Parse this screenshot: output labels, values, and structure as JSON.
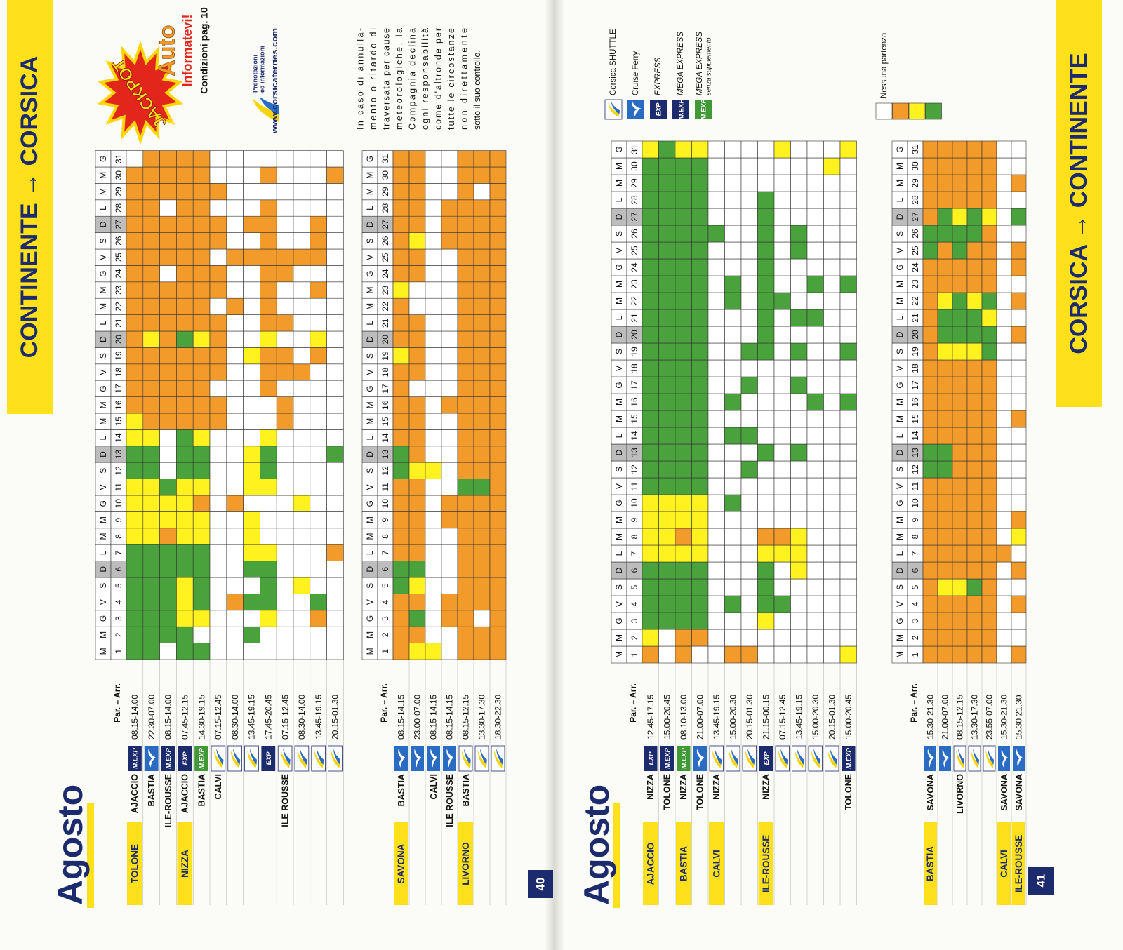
{
  "cell_colors": {
    "O": "#f39b2a",
    "Y": "#fff21f",
    "G": "#4aa23c",
    "W": "#ffffff"
  },
  "badge_colors": {
    "navy": "#1c2a6e",
    "green": "#3f9a35",
    "cruise": "#2a6cc4"
  },
  "days": [
    1,
    2,
    3,
    4,
    5,
    6,
    7,
    8,
    9,
    10,
    11,
    12,
    13,
    14,
    15,
    16,
    17,
    18,
    19,
    20,
    21,
    22,
    23,
    24,
    25,
    26,
    27,
    28,
    29,
    30,
    31
  ],
  "weekdays": [
    "M",
    "M",
    "G",
    "V",
    "S",
    {
      "label": "D",
      "shaded": true
    },
    "L",
    "M",
    "M",
    "G",
    "V",
    "S",
    {
      "label": "D",
      "shaded": true
    },
    "L",
    "M",
    "M",
    "G",
    "V",
    "S",
    {
      "label": "D",
      "shaded": true
    },
    "L",
    "M",
    "M",
    "G",
    "V",
    "S",
    {
      "label": "D",
      "shaded": true
    },
    "L",
    "M",
    "M",
    "G"
  ],
  "pages": [
    {
      "number": "40",
      "title": "Agosto",
      "banner": "CONTINENTE → CORSICA",
      "tables": [
        {
          "header": "Par. – Arr.",
          "rows": [
            {
              "group": "TOLONE",
              "destination": "AJACCIO",
              "badge": "M.EXP",
              "time": "08.15-14.00",
              "days": "GGGGGGG YYYYGGY YOOOOOO OOOOOOO OOW"
            },
            {
              "destination": "BASTIA",
              "icon": "cruise",
              "time": "22.30-07.00",
              "days": "GGGGGGG YYYYGGY OOOOOYO OOOOOOO OOO"
            },
            {
              "destination": "ILE-ROUSSE",
              "badge": "M.EXP",
              "time": "08.15-14.00",
              "days": "WGGGGGG OYYGWWW OOOOOOO OOWOOOW OOO"
            },
            {
              "group": "NIZZA",
              "destination": "AJACCIO",
              "badge": "EXP",
              "time": "07.45-12.15",
              "days": "GGYYYGG YYYYGGG OOOOOGO OOOOOOO OOO"
            },
            {
              "destination": "BASTIA",
              "badge": "M.EXP",
              "badge_color": "green",
              "time": "14.30-19.15",
              "days": "GWYGGGG YYOYGGY OOOOOYO OOOOOOO OOO"
            },
            {
              "destination": "CALVI",
              "icon": "shuttle",
              "time": "07.15-12.45",
              "days": "WWWWWWW WWWWWWW OOWOOOO WOOWOOW OWW"
            },
            {
              "icon": "shuttle",
              "time": "08.30-14.00",
              "days": "WWWOWWW WWOWWWW WWWWWWW OWWOWWW WWW"
            },
            {
              "icon": "shuttle",
              "time": "13.45-19.15",
              "days": "WGWGWGY YYWYYYW WWWWYWW WWWOWOW WWW"
            },
            {
              "badge": "EXP",
              "time": "17.45-20.45",
              "days": "WWYGGGY WWWYGGY WWOOOYO OOOOOOO WOW"
            },
            {
              "destination": "ILE ROUSSE",
              "icon": "shuttle",
              "time": "07.15-12.45",
              "days": "WWWWWWW WWWWWWW OOWOOWO WWOOWWW WWW"
            },
            {
              "icon": "shuttle",
              "time": "08.30-14.00",
              "days": "WWWWYWW WWYWWWW WWWOWWW WWWOWWW WWW"
            },
            {
              "icon": "shuttle",
              "time": "13.45-19.15",
              "days": "WWOGWWW WWWWWWW WWWWOYW WOWOOOW WWW"
            },
            {
              "icon": "shuttle",
              "time": "20.15-01.30",
              "days": "WWWWWWO WWWWWGW WWWWWWW WWWWWWW WOW"
            }
          ]
        },
        {
          "header": "Par. – Arr.",
          "rows": [
            {
              "group": "SAVONA",
              "destination": "BASTIA",
              "icon": "cruise",
              "time": "08.15-14.15",
              "days": "OOOOGGO OOOOGGO OOOOYOO OYOOOOO OOO"
            },
            {
              "icon": "cruise",
              "time": "23.00-07.00",
              "days": "YOGOYGO OOOOYOO OOWOOOO WWOOYOO OOO"
            },
            {
              "destination": "CALVI",
              "icon": "cruise",
              "time": "08.15-14.15",
              "days": "YWWWWWW WWWWYWW WWWWWWW WWWWWWW WWW"
            },
            {
              "destination": "ILE ROUSSE",
              "icon": "cruise",
              "time": "08.15-14.15",
              "days": "WWOOWWW WOOWWWW WOWWWWW WWWWOOO WWW"
            },
            {
              "group": "LIVORNO",
              "destination": "BASTIA",
              "icon": "shuttle",
              "time": "08.15-12.15",
              "days": "OOOOOOO OOOGOOO OOOOOOO OOOOOOO OOO"
            },
            {
              "icon": "shuttle",
              "time": "13.30-17.30",
              "days": "OOWOOOO OOOGOOO OOOOOOO OOOOOOO WOO"
            },
            {
              "icon": "shuttle",
              "time": "18.30-22.30",
              "days": "OOOOOOO OOOOOOO OOOOOOO OOOOOOO OOO"
            }
          ]
        }
      ],
      "promo": {
        "badge": "JACKPOT",
        "title": "Auto",
        "subtitle": "Informatevi!",
        "note": "Condizioni pag. 10"
      },
      "contact": {
        "line1": "Prenotazioni",
        "line2": "ed informazioni",
        "url": "www.corsicaferries.com"
      },
      "notice": [
        "In caso di annulla-",
        "mento o ritardo di",
        "traversata per cause",
        "meteorologiche, la",
        "Compagnia declina",
        "ogni responsabilità",
        "come d'altronde per",
        "tutte le circostanze",
        "non direttamente",
        "sotto il suo controllo."
      ]
    },
    {
      "number": "41",
      "title": "Agosto",
      "banner": "CORSICA → CONTINENTE",
      "tables": [
        {
          "header": "Par. – Arr.",
          "rows": [
            {
              "group": "AJACCIO",
              "destination": "NIZZA",
              "badge": "EXP",
              "time": "12.45-17.15",
              "days": "OYGGGGY YYYGGGG GGGGGGG GGGGGGG GGY"
            },
            {
              "destination": "TOLONE",
              "badge": "M.EXP",
              "time": "15.00-20.45",
              "days": "WWGGGGY YYYGGGG GGGGGGG GGGGGGG GGG"
            },
            {
              "group": "BASTIA",
              "destination": "NIZZA",
              "badge": "M.EXP",
              "badge_color": "green",
              "time": "08.10-13.00",
              "days": "OOGGGGY OYYGGGG GGGGGGG GGGGGGG GGY"
            },
            {
              "destination": "TOLONE",
              "icon": "cruise",
              "time": "21.00-07.00",
              "days": "WOGGGGY YYYGGGG GGGGGGG GGGGGGG GGY"
            },
            {
              "group": "CALVI",
              "destination": "NIZZA",
              "icon": "shuttle",
              "time": "13.45-19.15",
              "days": "WWWWWWW WWWWWWW WWWWWWW WWWWGWW WWW"
            },
            {
              "icon": "shuttle",
              "time": "15.00-20.30",
              "days": "OWWGWWW WWGWWWG WGWWWWW GGWWWWW WWW"
            },
            {
              "icon": "shuttle",
              "time": "20.15-01.30",
              "days": "OWWWWWW WWWWGWG WWGWGWW WWWWWWW WWW"
            },
            {
              "group": "ILE-ROUSSE",
              "destination": "NIZZA",
              "badge": "EXP",
              "time": "21.15-00.15",
              "days": "WWYGGGY OWWWWGW WWWWGGG GGGGGGG WWW"
            },
            {
              "icon": "shuttle",
              "time": "07.15-12.45",
              "days": "WWWGWWY OWWWWWW WWWWWWW GWWWWWW WWY"
            },
            {
              "icon": "shuttle",
              "time": "13.45-19.15",
              "days": "WWWWWYY YWWWWGW WWGWGWG WWWGGWW WWW"
            },
            {
              "icon": "shuttle",
              "time": "15.00-20.30",
              "days": "WWWWWWW WWWWWWW WGWWWWG WGWWWWW WWW"
            },
            {
              "icon": "shuttle",
              "time": "20.15-01.30",
              "days": "WWWWWWW WWWWWWW WWWWWWW WWWWWWW WYW"
            },
            {
              "destination": "TOLONE",
              "badge": "M.EXP",
              "time": "15.00-20.45",
              "days": "YWWWWWW WWWWWWW WGWWGWW WGWWWWW WWY"
            }
          ]
        },
        {
          "header": "Par. – Arr.",
          "rows": [
            {
              "group": "BASTIA",
              "destination": "SAVONA",
              "icon": "cruise",
              "time": "15.30-21.30",
              "days": "OOOOOOO OOOOGGO OOOOOOO OOOGGOO OOO"
            },
            {
              "icon": "cruise",
              "time": "21.00-07.00",
              "days": "OOOOYOO OOOOGGO OOOOYGG YOOOGGO OOO"
            },
            {
              "destination": "LIVORNO",
              "icon": "shuttle",
              "time": "08.15-12.15",
              "days": "OOOOYOO OOOOOOO OOOOYGG GOOGGYO OOO"
            },
            {
              "icon": "shuttle",
              "time": "13.30-17.30",
              "days": "OOOOGOO OOOOOOO OOOOYGG YOOOGGO OOO"
            },
            {
              "icon": "shuttle",
              "time": "23.55-07.00",
              "days": "OOOOOOO OOOOOOO OOOOGGY GOOOOYO OOO"
            },
            {
              "group": "CALVI",
              "destination": "SAVONA",
              "icon": "cruise",
              "time": "15.30-21.30",
              "days": "WWWWWWO WWWWWWW WWWWWWW WWWWWWW WWW"
            },
            {
              "group": "ILE-ROUSSE",
              "destination": "SAVONA",
              "icon": "cruise",
              "time": "15.30 21.30",
              "days": "OWWOWOW YOWWWWW OWWWWOW OWOOWGW OWW"
            }
          ]
        }
      ],
      "legend": [
        {
          "icon": "shuttle",
          "label": "Corsica SHUTTLE"
        },
        {
          "icon": "cruise",
          "label": "Cruise Ferry"
        },
        {
          "badge": "EXP",
          "label": "EXPRESS"
        },
        {
          "badge": "M.EXP",
          "label": "MEGA EXPRESS"
        },
        {
          "badge": "M.EXP",
          "badge_color": "green",
          "label": "MEGA EXPRESS",
          "note": "senza supplemento"
        }
      ],
      "no_departure": "Nessuna partenza"
    }
  ]
}
